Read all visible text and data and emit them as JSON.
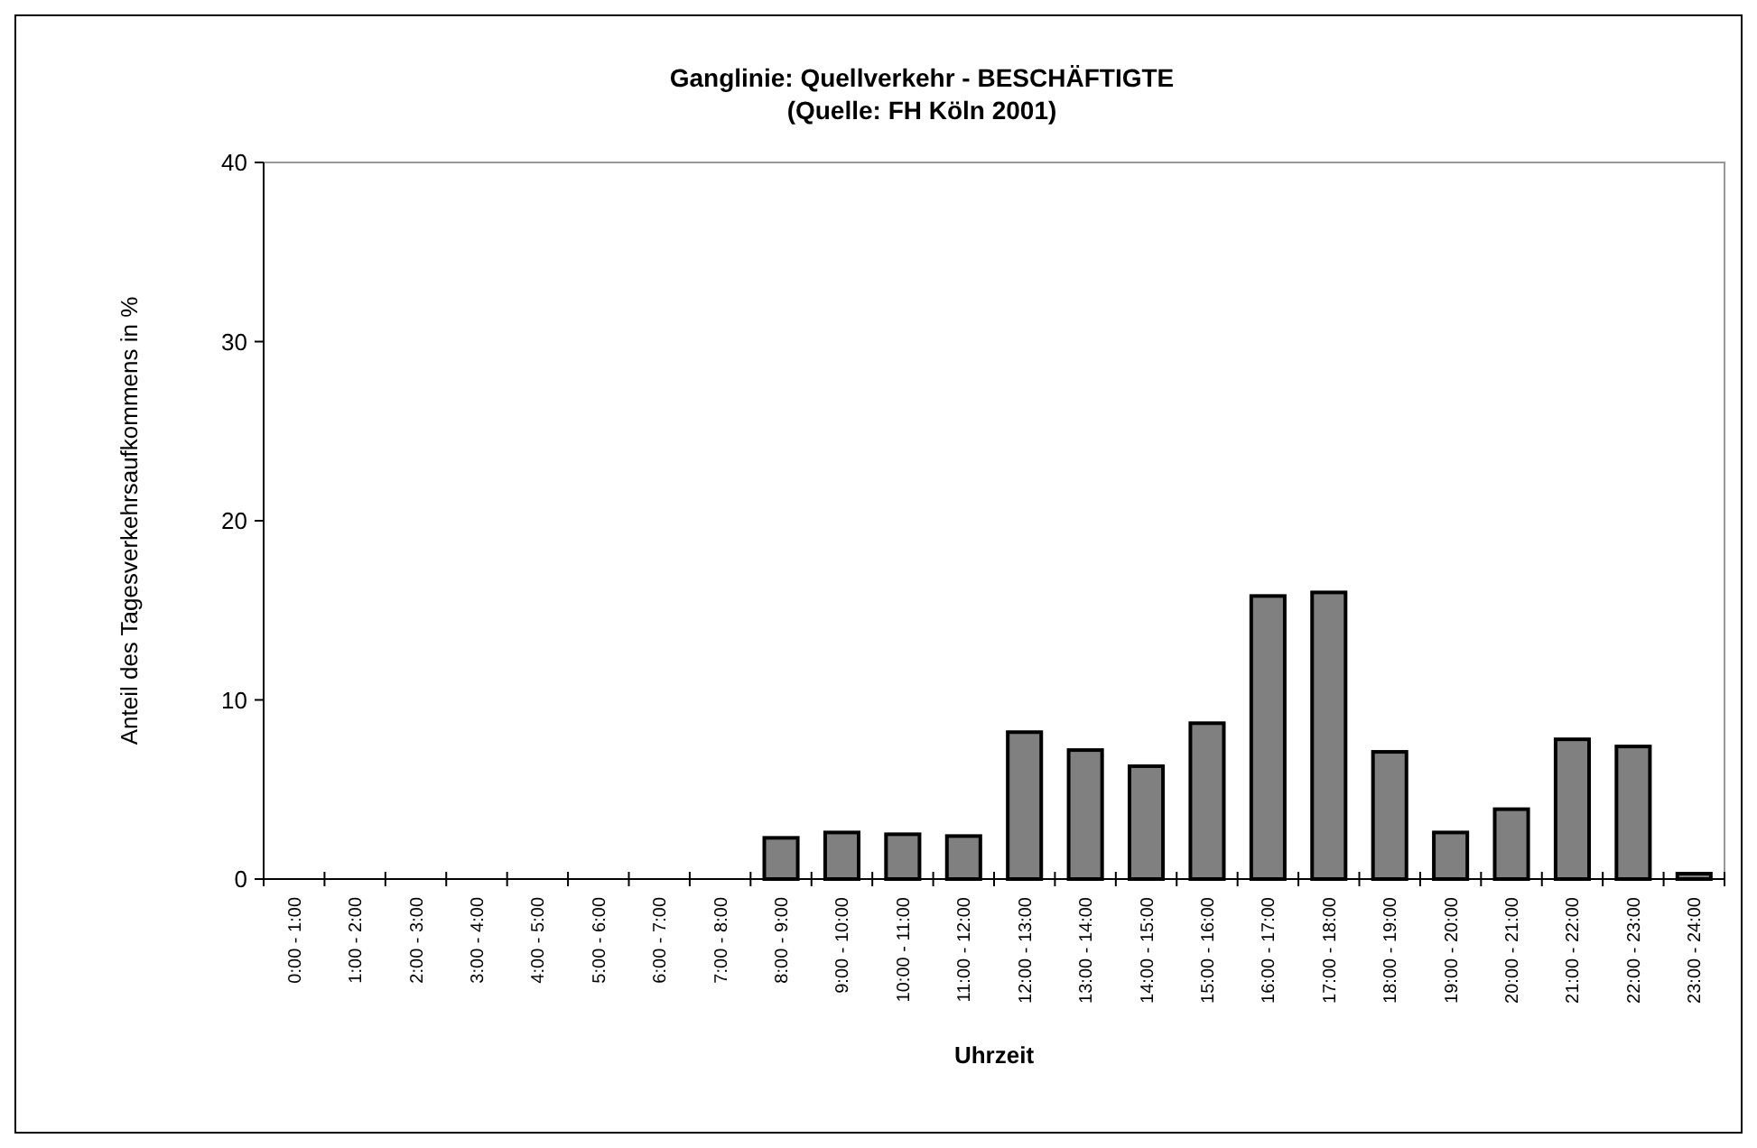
{
  "chart_data": {
    "type": "bar",
    "title": "Ganglinie: Quellverkehr - BESCHÄFTIGTE",
    "subtitle": "(Quelle: FH Köln 2001)",
    "xlabel": "Uhrzeit",
    "ylabel": "Anteil des Tagesverkehrsaufkommens in %",
    "categories": [
      "0:00 - 1:00",
      "1:00 - 2:00",
      "2:00 - 3:00",
      "3:00 - 4:00",
      "4:00 - 5:00",
      "5:00 - 6:00",
      "6:00 - 7:00",
      "7:00 - 8:00",
      "8:00 - 9:00",
      "9:00 - 10:00",
      "10:00 - 11:00",
      "11:00 - 12:00",
      "12:00 - 13:00",
      "13:00 - 14:00",
      "14:00 - 15:00",
      "15:00 - 16:00",
      "16:00 - 17:00",
      "17:00 - 18:00",
      "18:00 - 19:00",
      "19:00 - 20:00",
      "20:00 - 21:00",
      "21:00 - 22:00",
      "22:00 - 23:00",
      "23:00 - 24:00"
    ],
    "values": [
      0,
      0,
      0,
      0,
      0,
      0,
      0,
      0,
      2.3,
      2.6,
      2.5,
      2.4,
      8.2,
      7.2,
      6.3,
      8.7,
      15.8,
      16.0,
      7.1,
      2.6,
      3.9,
      7.8,
      7.4,
      0.3
    ],
    "color": "#808080",
    "ylim": [
      0,
      40
    ],
    "yticks": [
      0,
      10,
      20,
      30,
      40
    ],
    "grid": false
  }
}
